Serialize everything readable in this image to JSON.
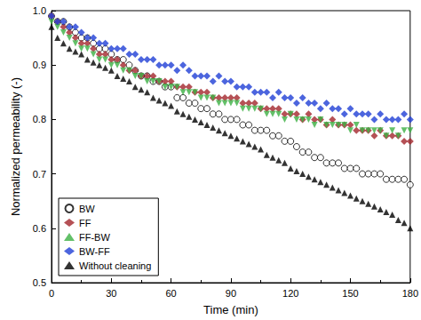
{
  "chart_data": {
    "type": "scatter",
    "x_label": "Time (min)",
    "y_label": "Normalized permeability (-)",
    "x": [
      0,
      3,
      6,
      9,
      12,
      15,
      18,
      21,
      24,
      27,
      30,
      33,
      36,
      39,
      42,
      45,
      48,
      51,
      54,
      57,
      60,
      63,
      66,
      69,
      72,
      75,
      78,
      81,
      84,
      87,
      90,
      93,
      96,
      99,
      102,
      105,
      108,
      111,
      114,
      117,
      120,
      123,
      126,
      129,
      132,
      135,
      138,
      141,
      144,
      147,
      150,
      153,
      156,
      159,
      162,
      165,
      168,
      171,
      174,
      177,
      180
    ],
    "xlim": [
      0,
      180
    ],
    "xticks": [
      0,
      30,
      60,
      90,
      120,
      150,
      180
    ],
    "ylim": [
      0.5,
      1
    ],
    "yticks": [
      0.5,
      0.6,
      0.7,
      0.8,
      0.9,
      {
        "value": 1,
        "label": "1.0"
      }
    ],
    "grid": false,
    "legend": "lower left",
    "series": [
      {
        "name": "BW",
        "color": "#000000",
        "marker": "open_circle",
        "values": [
          0.99,
          0.98,
          0.98,
          0.97,
          0.96,
          0.95,
          0.95,
          0.94,
          0.93,
          0.93,
          0.92,
          0.91,
          0.91,
          0.9,
          0.89,
          0.88,
          0.88,
          0.87,
          0.87,
          0.86,
          0.86,
          0.84,
          0.84,
          0.83,
          0.83,
          0.82,
          0.82,
          0.81,
          0.81,
          0.8,
          0.8,
          0.8,
          0.79,
          0.79,
          0.78,
          0.78,
          0.78,
          0.77,
          0.77,
          0.76,
          0.76,
          0.75,
          0.74,
          0.74,
          0.73,
          0.73,
          0.72,
          0.72,
          0.72,
          0.71,
          0.71,
          0.71,
          0.7,
          0.7,
          0.7,
          0.7,
          0.69,
          0.69,
          0.69,
          0.69,
          0.68
        ]
      },
      {
        "name": "FF",
        "color": "#a3262c",
        "marker": "diamond",
        "values": [
          0.99,
          0.98,
          0.97,
          0.96,
          0.95,
          0.94,
          0.94,
          0.93,
          0.92,
          0.92,
          0.91,
          0.91,
          0.9,
          0.89,
          0.89,
          0.88,
          0.88,
          0.88,
          0.87,
          0.87,
          0.87,
          0.86,
          0.86,
          0.86,
          0.85,
          0.85,
          0.85,
          0.84,
          0.84,
          0.84,
          0.84,
          0.84,
          0.83,
          0.83,
          0.83,
          0.82,
          0.82,
          0.82,
          0.82,
          0.81,
          0.81,
          0.81,
          0.8,
          0.81,
          0.8,
          0.8,
          0.79,
          0.8,
          0.79,
          0.79,
          0.79,
          0.78,
          0.78,
          0.78,
          0.77,
          0.78,
          0.77,
          0.77,
          0.77,
          0.76,
          0.76
        ]
      },
      {
        "name": "FF-BW",
        "color": "#3cb043",
        "marker": "triangle_down",
        "values": [
          0.98,
          0.97,
          0.96,
          0.95,
          0.94,
          0.93,
          0.93,
          0.92,
          0.91,
          0.91,
          0.9,
          0.9,
          0.89,
          0.89,
          0.88,
          0.88,
          0.87,
          0.87,
          0.87,
          0.86,
          0.86,
          0.86,
          0.85,
          0.85,
          0.85,
          0.84,
          0.84,
          0.84,
          0.83,
          0.83,
          0.83,
          0.83,
          0.82,
          0.82,
          0.82,
          0.82,
          0.81,
          0.81,
          0.81,
          0.8,
          0.81,
          0.8,
          0.8,
          0.8,
          0.79,
          0.8,
          0.79,
          0.79,
          0.79,
          0.79,
          0.78,
          0.79,
          0.78,
          0.78,
          0.78,
          0.78,
          0.77,
          0.78,
          0.77,
          0.78,
          0.78
        ]
      },
      {
        "name": "BW-FF",
        "color": "#1f3fd6",
        "marker": "diamond",
        "values": [
          0.99,
          0.98,
          0.98,
          0.97,
          0.97,
          0.96,
          0.95,
          0.95,
          0.94,
          0.94,
          0.93,
          0.93,
          0.93,
          0.92,
          0.92,
          0.91,
          0.91,
          0.91,
          0.9,
          0.9,
          0.9,
          0.89,
          0.9,
          0.89,
          0.88,
          0.88,
          0.88,
          0.87,
          0.88,
          0.87,
          0.87,
          0.86,
          0.86,
          0.86,
          0.85,
          0.85,
          0.85,
          0.84,
          0.85,
          0.84,
          0.84,
          0.83,
          0.84,
          0.83,
          0.83,
          0.82,
          0.83,
          0.82,
          0.82,
          0.81,
          0.82,
          0.81,
          0.81,
          0.81,
          0.8,
          0.81,
          0.8,
          0.8,
          0.8,
          0.81,
          0.8
        ]
      },
      {
        "name": "Without cleaning",
        "color": "#000000",
        "marker": "triangle",
        "values": [
          0.97,
          0.95,
          0.94,
          0.93,
          0.925,
          0.92,
          0.91,
          0.905,
          0.9,
          0.895,
          0.89,
          0.88,
          0.875,
          0.87,
          0.86,
          0.855,
          0.85,
          0.84,
          0.835,
          0.83,
          0.825,
          0.815,
          0.81,
          0.805,
          0.8,
          0.795,
          0.79,
          0.785,
          0.78,
          0.775,
          0.77,
          0.765,
          0.76,
          0.755,
          0.75,
          0.745,
          0.735,
          0.73,
          0.725,
          0.72,
          0.71,
          0.705,
          0.7,
          0.695,
          0.69,
          0.685,
          0.68,
          0.675,
          0.67,
          0.665,
          0.66,
          0.655,
          0.65,
          0.645,
          0.64,
          0.635,
          0.63,
          0.625,
          0.615,
          0.61,
          0.6
        ]
      }
    ]
  }
}
